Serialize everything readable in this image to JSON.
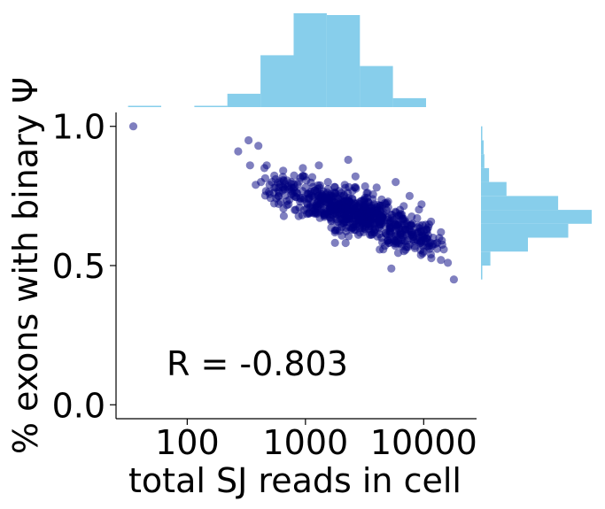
{
  "chart_data": {
    "type": "scatter",
    "xlabel": "total SJ reads in cell",
    "ylabel": "% exons with binary Ψ",
    "x_scale": "log",
    "xlim": [
      25,
      28000
    ],
    "ylim": [
      -0.05,
      1.05
    ],
    "x_ticks": [
      100,
      1000,
      10000
    ],
    "x_tick_labels": [
      "100",
      "1000",
      "10000"
    ],
    "y_ticks": [
      0.0,
      0.5,
      1.0
    ],
    "y_tick_labels": [
      "0.0",
      "0.5",
      "1.0"
    ],
    "annotation": "R = -0.803",
    "grid": false,
    "colors": {
      "points": "#00007f",
      "histogram": "#87ceeb"
    },
    "points": [
      [
        35,
        1.0
      ],
      [
        270,
        0.91
      ],
      [
        330,
        0.95
      ],
      [
        340,
        0.86
      ],
      [
        380,
        0.79
      ],
      [
        400,
        0.93
      ],
      [
        420,
        0.8
      ],
      [
        450,
        0.85
      ],
      [
        470,
        0.86
      ],
      [
        520,
        0.8
      ],
      [
        560,
        0.81
      ],
      [
        600,
        0.78
      ],
      [
        640,
        0.77
      ],
      [
        700,
        0.78
      ],
      [
        720,
        0.72
      ],
      [
        760,
        0.8
      ],
      [
        800,
        0.75
      ],
      [
        850,
        0.76
      ],
      [
        900,
        0.73
      ],
      [
        950,
        0.85
      ],
      [
        1000,
        0.78
      ],
      [
        1050,
        0.74
      ],
      [
        1100,
        0.71
      ],
      [
        1150,
        0.69
      ],
      [
        1200,
        0.77
      ],
      [
        1250,
        0.72
      ],
      [
        1300,
        0.86
      ],
      [
        1350,
        0.7
      ],
      [
        1400,
        0.75
      ],
      [
        1450,
        0.68
      ],
      [
        1500,
        0.74
      ],
      [
        1550,
        0.8
      ],
      [
        1600,
        0.71
      ],
      [
        1650,
        0.66
      ],
      [
        1700,
        0.73
      ],
      [
        1750,
        0.69
      ],
      [
        1800,
        0.76
      ],
      [
        1850,
        0.63
      ],
      [
        1900,
        0.72
      ],
      [
        1950,
        0.68
      ],
      [
        2000,
        0.75
      ],
      [
        2050,
        0.7
      ],
      [
        2100,
        0.65
      ],
      [
        2150,
        0.79
      ],
      [
        2200,
        0.71
      ],
      [
        2250,
        0.67
      ],
      [
        2300,
        0.88
      ],
      [
        2350,
        0.73
      ],
      [
        2400,
        0.69
      ],
      [
        2450,
        0.63
      ],
      [
        2500,
        0.74
      ],
      [
        2550,
        0.7
      ],
      [
        2600,
        0.66
      ],
      [
        2650,
        0.82
      ],
      [
        2700,
        0.71
      ],
      [
        2750,
        0.64
      ],
      [
        2800,
        0.68
      ],
      [
        2900,
        0.73
      ],
      [
        3000,
        0.66
      ],
      [
        3100,
        0.62
      ],
      [
        3200,
        0.7
      ],
      [
        3300,
        0.76
      ],
      [
        3400,
        0.65
      ],
      [
        3500,
        0.69
      ],
      [
        3600,
        0.61
      ],
      [
        3700,
        0.67
      ],
      [
        3800,
        0.72
      ],
      [
        3900,
        0.63
      ],
      [
        4000,
        0.78
      ],
      [
        4200,
        0.66
      ],
      [
        4400,
        0.6
      ],
      [
        4600,
        0.69
      ],
      [
        4800,
        0.64
      ],
      [
        5000,
        0.73
      ],
      [
        5200,
        0.62
      ],
      [
        5400,
        0.67
      ],
      [
        5600,
        0.58
      ],
      [
        5800,
        0.8
      ],
      [
        6000,
        0.64
      ],
      [
        6300,
        0.7
      ],
      [
        6600,
        0.61
      ],
      [
        7000,
        0.66
      ],
      [
        7300,
        0.59
      ],
      [
        7600,
        0.75
      ],
      [
        8000,
        0.62
      ],
      [
        8400,
        0.57
      ],
      [
        8800,
        0.67
      ],
      [
        9200,
        0.6
      ],
      [
        9600,
        0.72
      ],
      [
        10000,
        0.55
      ],
      [
        10500,
        0.63
      ],
      [
        11000,
        0.58
      ],
      [
        11500,
        0.54
      ],
      [
        12000,
        0.6
      ],
      [
        13000,
        0.56
      ],
      [
        14000,
        0.52
      ],
      [
        16000,
        0.51
      ],
      [
        18000,
        0.45
      ]
    ],
    "density_cloud": {
      "description": "dense cloud of overlapping points",
      "bands": [
        {
          "x_center": 700,
          "y_center": 0.77,
          "count": 60
        },
        {
          "x_center": 1300,
          "y_center": 0.73,
          "count": 110
        },
        {
          "x_center": 2200,
          "y_center": 0.7,
          "count": 150
        },
        {
          "x_center": 3500,
          "y_center": 0.67,
          "count": 150
        },
        {
          "x_center": 6000,
          "y_center": 0.63,
          "count": 110
        },
        {
          "x_center": 10000,
          "y_center": 0.59,
          "count": 60
        }
      ]
    },
    "top_histogram": {
      "bin_edges_log10": [
        1.5,
        1.78,
        2.06,
        2.34,
        2.62,
        2.9,
        3.18,
        3.46,
        3.74,
        4.02,
        4.3
      ],
      "counts": [
        1,
        0,
        1,
        15,
        58,
        105,
        103,
        46,
        10,
        0
      ]
    },
    "right_histogram": {
      "bin_edges": [
        0.45,
        0.5,
        0.55,
        0.6,
        0.65,
        0.7,
        0.75,
        0.8,
        0.85,
        0.9,
        0.95,
        1.0
      ],
      "counts": [
        2,
        14,
        70,
        130,
        165,
        115,
        38,
        12,
        5,
        4,
        1
      ]
    }
  }
}
